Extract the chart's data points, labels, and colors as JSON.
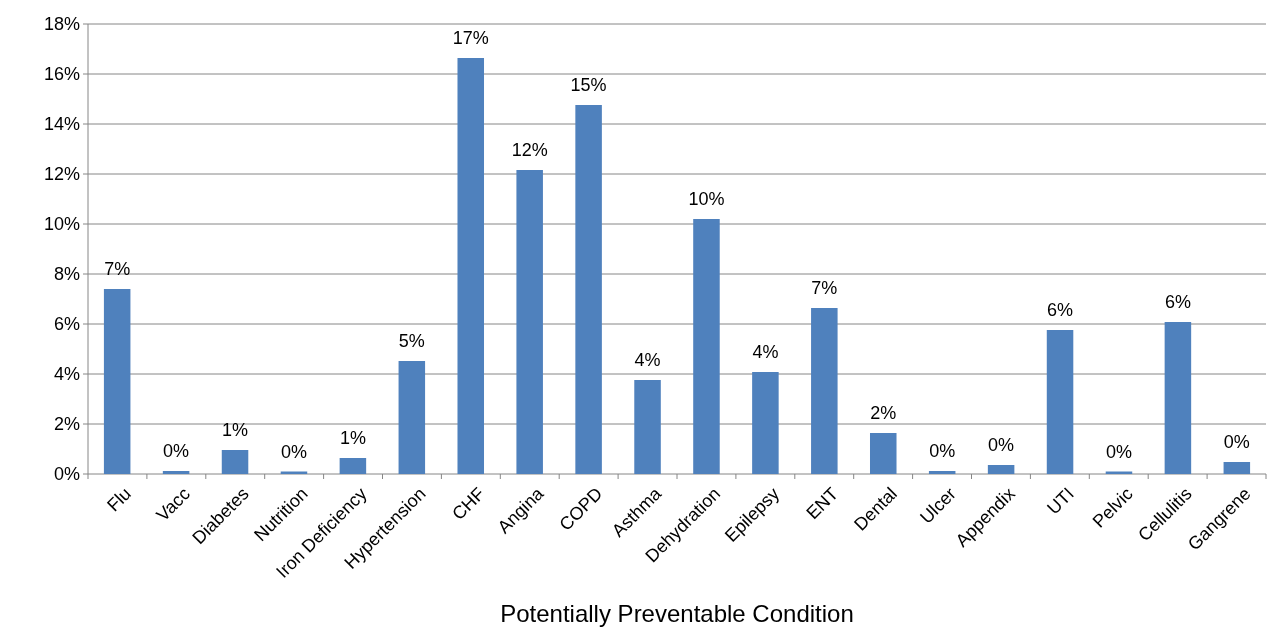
{
  "chart_data": {
    "type": "bar",
    "xlabel": "Potentially Preventable Condition",
    "categories": [
      "Flu",
      "Vacc",
      "Diabetes",
      "Nutrition",
      "Iron Deficiency",
      "Hypertension",
      "CHF",
      "Angina",
      "COPD",
      "Asthma",
      "Dehydration",
      "Epilepsy",
      "ENT",
      "Dental",
      "Ulcer",
      "Appendix",
      "UTI",
      "Pelvic",
      "Cellulitis",
      "Gangrene"
    ],
    "values": [
      7.4,
      0.12,
      0.96,
      0.1,
      0.64,
      4.52,
      16.64,
      12.16,
      14.76,
      3.76,
      10.2,
      4.08,
      6.64,
      1.64,
      0.12,
      0.36,
      5.76,
      0.1,
      6.08,
      0.48
    ],
    "value_labels": [
      "7%",
      "0%",
      "1%",
      "0%",
      "1%",
      "5%",
      "17%",
      "12%",
      "15%",
      "4%",
      "10%",
      "4%",
      "7%",
      "2%",
      "0%",
      "0%",
      "6%",
      "0%",
      "6%",
      "0%"
    ],
    "color": "#4f81bd",
    "ylim": [
      0,
      18
    ],
    "yticks": [
      {
        "value": 0,
        "label": "0%"
      },
      {
        "value": 2,
        "label": "2%"
      },
      {
        "value": 4,
        "label": "4%"
      },
      {
        "value": 6,
        "label": "6%"
      },
      {
        "value": 8,
        "label": "8%"
      },
      {
        "value": 10,
        "label": "10%"
      },
      {
        "value": 12,
        "label": "12%"
      },
      {
        "value": 14,
        "label": "14%"
      },
      {
        "value": 16,
        "label": "16%"
      },
      {
        "value": 18,
        "label": "18%"
      }
    ],
    "grid": "y"
  }
}
